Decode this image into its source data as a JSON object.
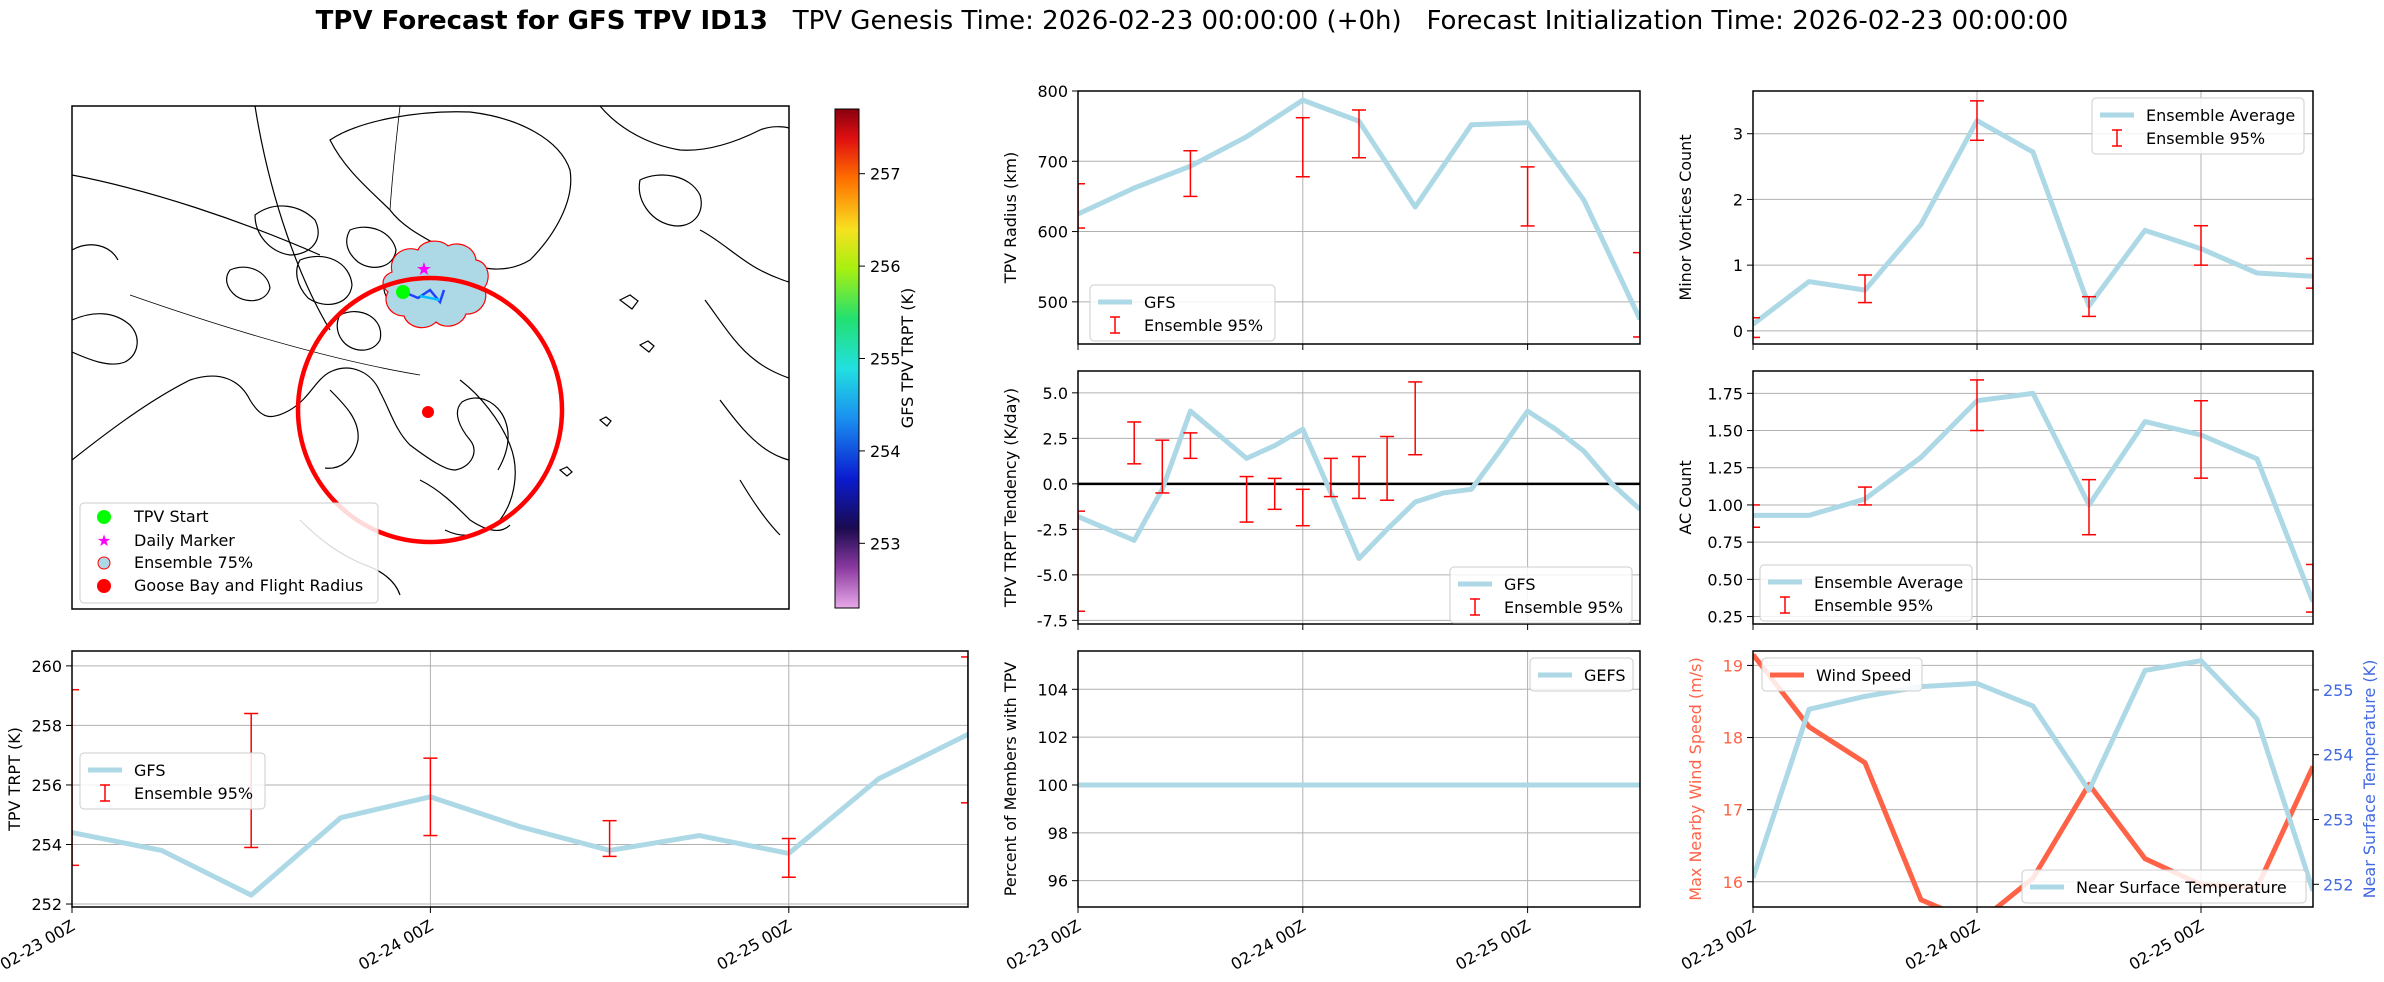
{
  "title": {
    "bold": "TPV Forecast for GFS TPV ID13",
    "genesis": "TPV Genesis Time: 2026-02-23 00:00:00 (+0h)",
    "init": "Forecast Initialization Time: 2026-02-23 00:00:00"
  },
  "colors": {
    "gfs_line": "#add8e6",
    "error_bar": "#ff0000",
    "wind_line": "#ff6347",
    "temp_axis": "#4169e1",
    "map_circle": "#ff0000",
    "ensemble_fill": "#add8e6"
  },
  "map": {
    "colorbar_label": "GFS TPV TRPT (K)",
    "colorbar_ticks": [
      "253",
      "254",
      "255",
      "256",
      "257"
    ],
    "colorbar_range": [
      252.3,
      257.7
    ],
    "legend": [
      "TPV Start",
      "Daily Marker",
      "Ensemble 75%",
      "Goose Bay and Flight Radius"
    ]
  },
  "x_tick_labels": [
    "02-23 00Z",
    "02-24 00Z",
    "02-25 00Z"
  ],
  "chart_data": [
    {
      "id": "trpt",
      "type": "line",
      "title": "",
      "xlabel": "",
      "ylabel": "TPV TRPT (K)",
      "x_hours": [
        0,
        6,
        12,
        18,
        24,
        30,
        36,
        42,
        48,
        54,
        60
      ],
      "xlim": [
        0,
        60
      ],
      "ylim": [
        251.9,
        260.5
      ],
      "yticks": [
        252,
        254,
        256,
        258,
        260
      ],
      "series": [
        {
          "name": "GFS",
          "values": [
            254.4,
            253.8,
            252.3,
            254.9,
            255.6,
            254.6,
            253.8,
            254.3,
            253.7,
            256.2,
            257.7
          ]
        }
      ],
      "ensemble_95": [
        {
          "x": 0,
          "low": 253.3,
          "high": 259.2
        },
        {
          "x": 12,
          "low": 253.9,
          "high": 258.4
        },
        {
          "x": 24,
          "low": 254.3,
          "high": 256.9
        },
        {
          "x": 36,
          "low": 253.6,
          "high": 254.8
        },
        {
          "x": 48,
          "low": 252.9,
          "high": 254.2
        },
        {
          "x": 60,
          "low": 255.4,
          "high": 260.3
        }
      ],
      "legend": [
        "GFS",
        "Ensemble 95%"
      ]
    },
    {
      "id": "radius",
      "type": "line",
      "ylabel": "TPV Radius (km)",
      "x_hours": [
        0,
        6,
        12,
        18,
        24,
        30,
        36,
        42,
        48,
        54,
        60
      ],
      "xlim": [
        0,
        60
      ],
      "ylim": [
        440,
        800
      ],
      "yticks": [
        500,
        600,
        700,
        800
      ],
      "series": [
        {
          "name": "GFS",
          "values": [
            625,
            662,
            693,
            735,
            787,
            757,
            635,
            752,
            755,
            645,
            475
          ]
        }
      ],
      "ensemble_95": [
        {
          "x": 0,
          "low": 605,
          "high": 668
        },
        {
          "x": 12,
          "low": 650,
          "high": 715
        },
        {
          "x": 24,
          "low": 678,
          "high": 762
        },
        {
          "x": 30,
          "low": 705,
          "high": 773
        },
        {
          "x": 48,
          "low": 608,
          "high": 692
        },
        {
          "x": 60,
          "low": 450,
          "high": 570
        }
      ],
      "legend": [
        "GFS",
        "Ensemble 95%"
      ]
    },
    {
      "id": "minor",
      "type": "line",
      "ylabel": "Minor Vortices Count",
      "x_hours": [
        0,
        6,
        12,
        18,
        24,
        30,
        36,
        42,
        48,
        54,
        60
      ],
      "xlim": [
        0,
        60
      ],
      "ylim": [
        -0.2,
        3.65
      ],
      "yticks": [
        0,
        1,
        2,
        3
      ],
      "series": [
        {
          "name": "Ensemble Average",
          "values": [
            0.1,
            0.75,
            0.62,
            1.62,
            3.2,
            2.72,
            0.38,
            1.53,
            1.25,
            0.88,
            0.83
          ]
        }
      ],
      "ensemble_95": [
        {
          "x": 0,
          "low": -0.1,
          "high": 0.2
        },
        {
          "x": 12,
          "low": 0.43,
          "high": 0.85
        },
        {
          "x": 24,
          "low": 2.9,
          "high": 3.5
        },
        {
          "x": 36,
          "low": 0.22,
          "high": 0.52
        },
        {
          "x": 48,
          "low": 1.0,
          "high": 1.6
        },
        {
          "x": 60,
          "low": 0.65,
          "high": 1.1
        }
      ],
      "legend": [
        "Ensemble Average",
        "Ensemble 95%"
      ]
    },
    {
      "id": "tendency",
      "type": "line",
      "ylabel": "TPV TRPT Tendency (K/day)",
      "x_hours": [
        0,
        6,
        9,
        12,
        15,
        18,
        21,
        24,
        27,
        30,
        33,
        36,
        39,
        42,
        45,
        48,
        51,
        54,
        57,
        60
      ],
      "xlim": [
        0,
        60
      ],
      "ylim": [
        -7.7,
        6.2
      ],
      "yticks": [
        -7.5,
        -5.0,
        -2.5,
        0.0,
        2.5,
        5.0
      ],
      "ytick_labels": [
        "-7.5",
        "-5.0",
        "-2.5",
        "0.0",
        "2.5",
        "5.0"
      ],
      "zero_line": true,
      "series": [
        {
          "name": "GFS",
          "values": [
            -1.8,
            -3.1,
            -0.3,
            4.0,
            2.7,
            1.4,
            2.1,
            3.0,
            -0.5,
            -4.1,
            -2.5,
            -1.0,
            -0.5,
            -0.3,
            1.8,
            4.0,
            3.0,
            1.8,
            0.0,
            -1.4
          ]
        }
      ],
      "ensemble_95": [
        {
          "x": 0,
          "low": -7.0,
          "high": -1.5
        },
        {
          "x": 6,
          "low": 1.1,
          "high": 3.4
        },
        {
          "x": 9,
          "low": -0.5,
          "high": 2.4
        },
        {
          "x": 12,
          "low": 1.4,
          "high": 2.8
        },
        {
          "x": 18,
          "low": -2.1,
          "high": 0.4
        },
        {
          "x": 21,
          "low": -1.4,
          "high": 0.3
        },
        {
          "x": 24,
          "low": -2.3,
          "high": -0.3
        },
        {
          "x": 27,
          "low": -0.7,
          "high": 1.4
        },
        {
          "x": 30,
          "low": -0.8,
          "high": 1.5
        },
        {
          "x": 33,
          "low": -0.9,
          "high": 2.6
        },
        {
          "x": 36,
          "low": 1.6,
          "high": 5.6
        }
      ],
      "legend": [
        "GFS",
        "Ensemble 95%"
      ]
    },
    {
      "id": "ac",
      "type": "line",
      "ylabel": "AC Count",
      "x_hours": [
        0,
        6,
        12,
        18,
        24,
        30,
        36,
        42,
        48,
        54,
        60
      ],
      "xlim": [
        0,
        60
      ],
      "ylim": [
        0.2,
        1.9
      ],
      "yticks": [
        0.25,
        0.5,
        0.75,
        1.0,
        1.25,
        1.5,
        1.75
      ],
      "ytick_labels": [
        "0.25",
        "0.50",
        "0.75",
        "1.00",
        "1.25",
        "1.50",
        "1.75"
      ],
      "series": [
        {
          "name": "Ensemble Average",
          "values": [
            0.93,
            0.93,
            1.04,
            1.32,
            1.7,
            1.75,
            1.0,
            1.56,
            1.47,
            1.31,
            0.35
          ]
        }
      ],
      "ensemble_95": [
        {
          "x": 0,
          "low": 0.85,
          "high": 1.0
        },
        {
          "x": 12,
          "low": 1.0,
          "high": 1.12
        },
        {
          "x": 24,
          "low": 1.5,
          "high": 1.84
        },
        {
          "x": 36,
          "low": 0.8,
          "high": 1.17
        },
        {
          "x": 48,
          "low": 1.18,
          "high": 1.7
        },
        {
          "x": 60,
          "low": 0.28,
          "high": 0.6
        }
      ],
      "legend": [
        "Ensemble Average",
        "Ensemble 95%"
      ]
    },
    {
      "id": "percent",
      "type": "line",
      "ylabel": "Percent of Members with TPV",
      "x_hours": [
        0,
        60
      ],
      "xlim": [
        0,
        60
      ],
      "ylim": [
        94.9,
        105.6
      ],
      "yticks": [
        96,
        98,
        100,
        102,
        104
      ],
      "series": [
        {
          "name": "GEFS",
          "values": [
            100,
            100
          ]
        }
      ],
      "legend": [
        "GEFS"
      ]
    },
    {
      "id": "wind",
      "type": "line",
      "ylabel": "Max Nearby Wind Speed (m/s)",
      "ylabel_right": "Near Surface Temperature (K)",
      "x_hours": [
        0,
        6,
        12,
        18,
        24,
        30,
        36,
        42,
        48,
        54,
        60
      ],
      "xlim": [
        0,
        60
      ],
      "ylim": [
        15.65,
        19.2
      ],
      "yticks": [
        16,
        17,
        18,
        19
      ],
      "ylim_right": [
        251.65,
        255.6
      ],
      "yticks_right": [
        252,
        253,
        254,
        255
      ],
      "series": [
        {
          "name": "Wind Speed",
          "values": [
            19.15,
            18.15,
            17.65,
            15.75,
            15.42,
            16.05,
            17.35,
            16.32,
            15.96,
            15.92,
            17.6
          ]
        },
        {
          "name": "Near Surface Temperature",
          "values": [
            252.1,
            254.7,
            254.9,
            255.05,
            255.1,
            254.75,
            253.45,
            255.3,
            255.45,
            254.55,
            251.9
          ]
        }
      ],
      "legend": [
        "Wind Speed",
        "Near Surface Temperature"
      ]
    }
  ]
}
